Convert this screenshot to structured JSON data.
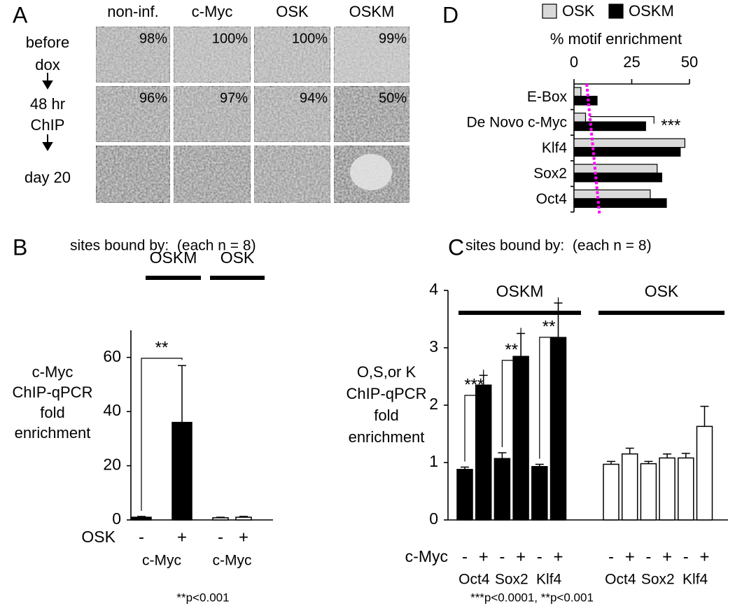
{
  "image_grid": {
    "panel": "A",
    "columns": [
      "non-inf.",
      "c-Myc",
      "OSK",
      "OSKM"
    ],
    "rows": [
      {
        "label": [
          "before",
          "dox"
        ],
        "percents": [
          "98%",
          "100%",
          "100%",
          "99%"
        ]
      },
      {
        "label": [
          "48 hr",
          "ChIP"
        ],
        "percents": [
          "96%",
          "97%",
          "94%",
          "50%"
        ]
      },
      {
        "label": [
          "day 20"
        ],
        "percents": []
      }
    ]
  },
  "chart_data": [
    {
      "type": "bar",
      "panel": "B",
      "title": "sites bound by:  (each n = 8)",
      "groups": [
        "OSKM",
        "OSK"
      ],
      "x_row_label": "OSK",
      "x_group_labels": [
        "c-Myc",
        "c-Myc"
      ],
      "categories": [
        "-",
        "+",
        "-",
        "+"
      ],
      "values": [
        1,
        36,
        0.8,
        1
      ],
      "errors": [
        0.3,
        21,
        0.2,
        0.3
      ],
      "colors": [
        "#000000",
        "#000000",
        "#ffffff",
        "#ffffff"
      ],
      "ylim": [
        0,
        70
      ],
      "yticks": [
        0,
        20,
        40,
        60
      ],
      "ylabel": [
        "c-Myc",
        "ChIP-qPCR",
        "fold",
        "enrichment"
      ],
      "annotations": [
        "**"
      ],
      "footnote": "**p<0.001"
    },
    {
      "type": "bar",
      "panel": "C",
      "title": "sites bound by:  (each n = 8)",
      "groups": [
        "OSKM",
        "OSK"
      ],
      "x_row_label": "c-Myc",
      "x_group_labels": [
        "Oct4",
        "Sox2",
        "Klf4",
        "Oct4",
        "Sox2",
        "Klf4"
      ],
      "categories": [
        "-",
        "+",
        "-",
        "+",
        "-",
        "+",
        "-",
        "+",
        "-",
        "+",
        "-",
        "+"
      ],
      "values": [
        0.88,
        2.35,
        1.07,
        2.85,
        0.93,
        3.18,
        0.97,
        1.15,
        0.98,
        1.08,
        1.08,
        1.63
      ],
      "errors": [
        0.04,
        0.17,
        0.1,
        0.4,
        0.04,
        0.6,
        0.05,
        0.1,
        0.04,
        0.07,
        0.08,
        0.35
      ],
      "colors": [
        "#000000",
        "#000000",
        "#000000",
        "#000000",
        "#000000",
        "#000000",
        "#ffffff",
        "#ffffff",
        "#ffffff",
        "#ffffff",
        "#ffffff",
        "#ffffff"
      ],
      "ylim": [
        0,
        4
      ],
      "yticks": [
        0,
        1,
        2,
        3,
        4
      ],
      "ylabel": [
        "O,S,or K",
        "ChIP-qPCR",
        "fold",
        "enrichment"
      ],
      "annotations": [
        "***",
        "**",
        "**"
      ],
      "footnote": "***p<0.0001, **p<0.001"
    },
    {
      "type": "hbar",
      "panel": "D",
      "xlabel": "% motif enrichment",
      "categories": [
        "E-Box",
        "De Novo c-Myc",
        "Klf4",
        "Sox2",
        "Oct4"
      ],
      "series": [
        {
          "name": "OSK",
          "color": "#d9d9d9",
          "values": [
            3,
            5,
            48,
            36,
            33
          ]
        },
        {
          "name": "OSKM",
          "color": "#000000",
          "values": [
            10,
            31,
            46,
            38,
            40
          ]
        }
      ],
      "xlim": [
        0,
        50
      ],
      "xticks": [
        0,
        25,
        50
      ],
      "reference_line": {
        "color": "#ff00ff",
        "values": [
          5.5,
          11
        ]
      },
      "annotations": [
        "***"
      ],
      "legend": "top"
    }
  ]
}
